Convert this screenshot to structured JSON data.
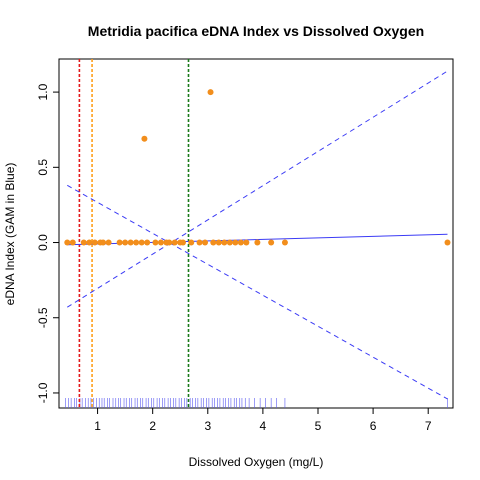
{
  "chart_data": {
    "type": "scatter",
    "title": "Metridia pacifica eDNA Index vs Dissolved Oxygen",
    "xlabel": "Dissolved Oxygen (mg/L)",
    "ylabel": "eDNA Index (GAM in Blue)",
    "xlim": [
      0.3,
      7.45
    ],
    "ylim": [
      -1.1,
      1.22
    ],
    "x_ticks": [
      "1",
      "2",
      "3",
      "4",
      "5",
      "6",
      "7"
    ],
    "y_ticks": [
      "-1.0",
      "-0.5",
      "0.0",
      "0.5",
      "1.0"
    ],
    "grid": false,
    "points": [
      {
        "x": 0.45,
        "y": 0.0
      },
      {
        "x": 0.55,
        "y": 0.0
      },
      {
        "x": 0.75,
        "y": 0.0
      },
      {
        "x": 0.85,
        "y": 0.0
      },
      {
        "x": 0.95,
        "y": 0.0
      },
      {
        "x": 1.05,
        "y": 0.0
      },
      {
        "x": 1.1,
        "y": 0.0
      },
      {
        "x": 1.2,
        "y": 0.0
      },
      {
        "x": 1.4,
        "y": 0.0
      },
      {
        "x": 1.5,
        "y": 0.0
      },
      {
        "x": 1.6,
        "y": 0.0
      },
      {
        "x": 1.7,
        "y": 0.0
      },
      {
        "x": 1.8,
        "y": 0.0
      },
      {
        "x": 1.85,
        "y": 0.69
      },
      {
        "x": 1.9,
        "y": 0.0
      },
      {
        "x": 2.05,
        "y": 0.0
      },
      {
        "x": 2.15,
        "y": 0.0
      },
      {
        "x": 2.25,
        "y": 0.0
      },
      {
        "x": 2.3,
        "y": 0.0
      },
      {
        "x": 2.4,
        "y": 0.0
      },
      {
        "x": 2.5,
        "y": 0.0
      },
      {
        "x": 2.55,
        "y": 0.0
      },
      {
        "x": 2.7,
        "y": 0.0
      },
      {
        "x": 2.85,
        "y": 0.0
      },
      {
        "x": 2.95,
        "y": 0.0
      },
      {
        "x": 3.05,
        "y": 1.0
      },
      {
        "x": 3.1,
        "y": 0.0
      },
      {
        "x": 3.2,
        "y": 0.0
      },
      {
        "x": 3.3,
        "y": 0.0
      },
      {
        "x": 3.4,
        "y": 0.0
      },
      {
        "x": 3.5,
        "y": 0.0
      },
      {
        "x": 3.6,
        "y": 0.0
      },
      {
        "x": 3.7,
        "y": 0.0
      },
      {
        "x": 3.9,
        "y": 0.0
      },
      {
        "x": 4.15,
        "y": 0.0
      },
      {
        "x": 4.4,
        "y": 0.0
      },
      {
        "x": 7.35,
        "y": 0.0
      }
    ],
    "gam_fit": {
      "x": [
        0.45,
        7.35
      ],
      "y": [
        -0.015,
        0.055
      ]
    },
    "gam_ci_upper": {
      "x": [
        0.45,
        7.35
      ],
      "y": [
        -0.43,
        1.14
      ]
    },
    "gam_ci_lower": {
      "x": [
        0.45,
        7.35
      ],
      "y": [
        0.38,
        -1.04
      ]
    },
    "vlines": [
      {
        "x": 0.67,
        "color": "#e31a1c"
      },
      {
        "x": 0.9,
        "color": "#ff9f1a"
      },
      {
        "x": 2.65,
        "color": "#1a7a1a"
      }
    ],
    "rug_x": [
      0.42,
      0.47,
      0.52,
      0.58,
      0.62,
      0.68,
      0.72,
      0.78,
      0.83,
      0.88,
      0.93,
      0.98,
      1.03,
      1.08,
      1.12,
      1.18,
      1.22,
      1.28,
      1.33,
      1.38,
      1.42,
      1.48,
      1.52,
      1.58,
      1.62,
      1.68,
      1.72,
      1.78,
      1.82,
      1.88,
      1.92,
      1.98,
      2.02,
      2.08,
      2.12,
      2.18,
      2.22,
      2.28,
      2.32,
      2.38,
      2.42,
      2.48,
      2.52,
      2.58,
      2.62,
      2.68,
      2.72,
      2.78,
      2.82,
      2.88,
      2.92,
      2.98,
      3.02,
      3.08,
      3.12,
      3.18,
      3.22,
      3.28,
      3.32,
      3.38,
      3.42,
      3.48,
      3.52,
      3.58,
      3.62,
      3.68,
      3.75,
      3.85,
      3.95,
      4.05,
      4.15,
      4.25,
      4.4,
      7.35
    ],
    "colors": {
      "points": "#f28e1c",
      "gam": "#3b3bf5",
      "rug": "#5a5af0",
      "axis": "#000000"
    }
  }
}
